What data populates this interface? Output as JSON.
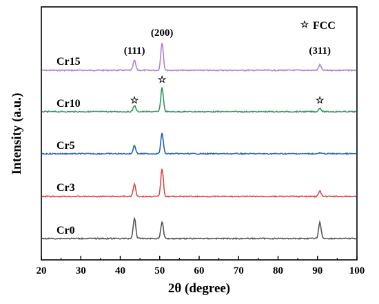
{
  "chart_data": {
    "type": "line",
    "xlabel": "2θ (degree)",
    "ylabel": "Intensity (a.u.)",
    "xlim": [
      20,
      100
    ],
    "xticks": [
      "20",
      "30",
      "40",
      "50",
      "60",
      "70",
      "80",
      "90",
      "100"
    ],
    "yticks_shown": false,
    "grid": false,
    "legend": {
      "symbol": "☆",
      "label": "FCC",
      "placement": "top-right"
    },
    "peak_labels": [
      {
        "text": "(111)",
        "x": 43.6
      },
      {
        "text": "(200)",
        "x": 50.6
      },
      {
        "text": "(311)",
        "x": 90.6
      }
    ],
    "fcc_markers": {
      "series": "Cr10",
      "symbol": "☆",
      "x": [
        43.6,
        50.6,
        90.6
      ]
    },
    "series": [
      {
        "name": "Cr15",
        "color": "#b07fd0",
        "peaks": [
          {
            "x": 43.6,
            "intensity": 0.33
          },
          {
            "x": 50.6,
            "intensity": 0.92
          },
          {
            "x": 90.6,
            "intensity": 0.18
          }
        ]
      },
      {
        "name": "Cr10",
        "color": "#2e9460",
        "peaks": [
          {
            "x": 43.6,
            "intensity": 0.2
          },
          {
            "x": 50.6,
            "intensity": 0.8
          },
          {
            "x": 90.6,
            "intensity": 0.12
          }
        ]
      },
      {
        "name": "Cr5",
        "color": "#2060b8",
        "peaks": [
          {
            "x": 43.6,
            "intensity": 0.27
          },
          {
            "x": 50.6,
            "intensity": 0.67
          },
          {
            "x": 90.6,
            "intensity": 0.02
          }
        ]
      },
      {
        "name": "Cr3",
        "color": "#d94848",
        "peaks": [
          {
            "x": 43.6,
            "intensity": 0.4
          },
          {
            "x": 50.6,
            "intensity": 0.92
          },
          {
            "x": 90.6,
            "intensity": 0.18
          }
        ]
      },
      {
        "name": "Cr0",
        "color": "#555555",
        "peaks": [
          {
            "x": 43.6,
            "intensity": 0.67
          },
          {
            "x": 50.6,
            "intensity": 0.55
          },
          {
            "x": 90.6,
            "intensity": 0.53
          }
        ]
      }
    ]
  }
}
